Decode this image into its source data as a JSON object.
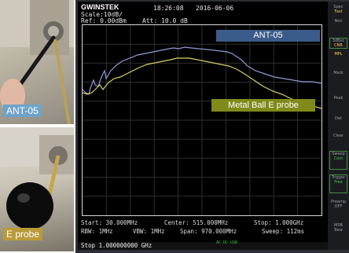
{
  "photos": {
    "top_label": "ANT-05",
    "bottom_label": "E probe"
  },
  "analyzer": {
    "brand": "GWINSTEK",
    "scale": "Scale:10dB/",
    "ref": "Ref: 0.00dBm",
    "att": "Att: 10.0 dB",
    "time": "18:26:08",
    "date": "2016-06-06",
    "start": "Start: 30.000MHz",
    "center": "Center: 515.000MHz",
    "stop": "Stop: 1.000GHz",
    "rbw": "RBW: 1MHz",
    "vbw": "VBW: 1MHz",
    "span": "Span: 970.000MHz",
    "sweep": "Sweep: 112ms",
    "stop_entry": "Stop 1.000000000 GHz",
    "usb": "AC DC USB"
  },
  "trace_labels": {
    "antenna": "ANT-05",
    "probe": "Metal Ball  E probe"
  },
  "side_menu": [
    {
      "title": "Spec",
      "sub": "Fast"
    },
    {
      "title": "Non",
      "sub": ""
    },
    {
      "title": "3dBxc",
      "sub": "CNR"
    },
    {
      "title": "",
      "sub": "MPL"
    },
    {
      "title": "Mark",
      "sub": ""
    },
    {
      "title": "Peak",
      "sub": ""
    },
    {
      "title": "Det",
      "sub": ""
    },
    {
      "title": "Clear",
      "sub": ""
    },
    {
      "title": "Sweep",
      "sub": "Cont"
    },
    {
      "title": "Trigger",
      "sub": "Free"
    },
    {
      "title": "Preamp",
      "sub": "OFF"
    },
    {
      "title": "MSB",
      "sub": "Bew"
    }
  ],
  "colors": {
    "ant_trace": "#8d9bd8",
    "probe_trace": "#d8d06a",
    "grid": "#2f2f2f",
    "ant_label_bg": "#3b5c8a",
    "probe_label_bg": "#7f8a1b"
  }
}
